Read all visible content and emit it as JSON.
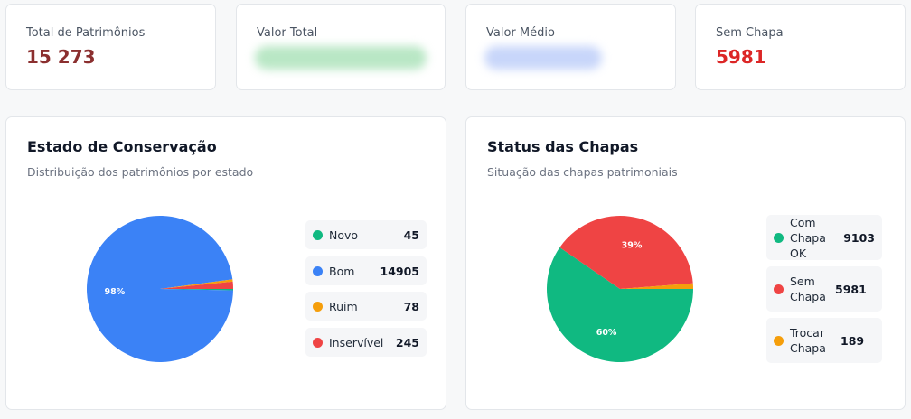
{
  "stats": [
    {
      "label": "Total de Patrimônios",
      "value": "15 273",
      "color": "#8b2f2f"
    },
    {
      "label": "Valor Total",
      "value": "",
      "color": "#1f2937"
    },
    {
      "label": "Valor Médio",
      "value": "",
      "color": "#1f2937"
    },
    {
      "label": "Sem Chapa",
      "value": "5981",
      "color": "#dc2626"
    }
  ],
  "conservacao": {
    "title": "Estado de Conservação",
    "subtitle": "Distribuição dos patrimônios por estado",
    "legend": [
      {
        "name": "Novo",
        "count": "45",
        "color": "#10b981"
      },
      {
        "name": "Bom",
        "count": "14905",
        "color": "#3b82f6"
      },
      {
        "name": "Ruim",
        "count": "78",
        "color": "#f59e0b"
      },
      {
        "name": "Inservível",
        "count": "245",
        "color": "#ef4444"
      }
    ]
  },
  "chapas": {
    "title": "Status das Chapas",
    "subtitle": "Situação das chapas patrimoniais",
    "legend": [
      {
        "name": "Com Chapa OK",
        "count": "9103",
        "color": "#10b981"
      },
      {
        "name": "Sem Chapa",
        "count": "5981",
        "color": "#ef4444"
      },
      {
        "name": "Trocar Chapa",
        "count": "189",
        "color": "#f59e0b"
      }
    ]
  },
  "chart_data": [
    {
      "type": "pie",
      "title": "Estado de Conservação",
      "categories": [
        "Novo",
        "Bom",
        "Ruim",
        "Inservível"
      ],
      "values": [
        45,
        14905,
        78,
        245
      ],
      "labels": [
        "",
        "98%",
        "",
        ""
      ],
      "colors": [
        "#10b981",
        "#3b82f6",
        "#f59e0b",
        "#ef4444"
      ]
    },
    {
      "type": "pie",
      "title": "Status das Chapas",
      "categories": [
        "Com Chapa OK",
        "Sem Chapa",
        "Trocar Chapa"
      ],
      "values": [
        9103,
        5981,
        189
      ],
      "labels": [
        "60%",
        "39%",
        ""
      ],
      "colors": [
        "#10b981",
        "#ef4444",
        "#f59e0b"
      ]
    }
  ]
}
